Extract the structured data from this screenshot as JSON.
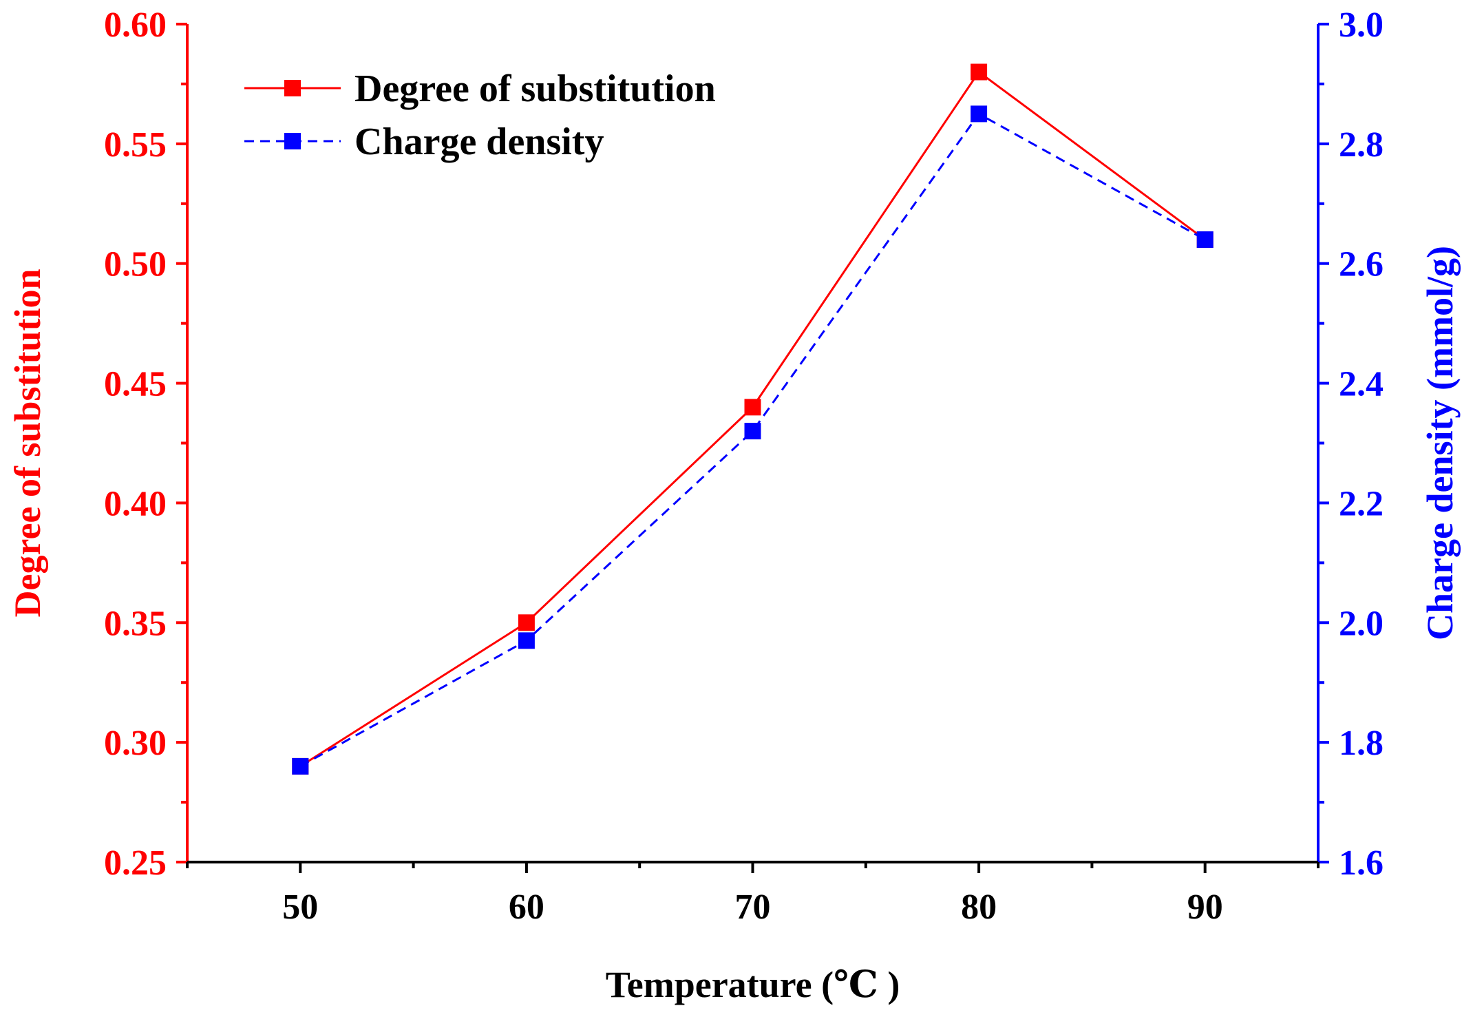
{
  "chart_data": {
    "type": "line",
    "title": "",
    "xlabel": "Temperature (℃ )",
    "ylabel_left": "Degree of substitution",
    "ylabel_right": "Charge density (mmol/g)",
    "x": [
      50,
      60,
      70,
      80,
      90
    ],
    "xlim": [
      45,
      95
    ],
    "xticks": [
      50,
      60,
      70,
      80,
      90
    ],
    "xtick_labels": [
      "50",
      "60",
      "70",
      "80",
      "90"
    ],
    "ylim_left": [
      0.25,
      0.6
    ],
    "yticks_left": [
      "0.25",
      "0.30",
      "0.35",
      "0.40",
      "0.45",
      "0.50",
      "0.55",
      "0.60"
    ],
    "ylim_right": [
      1.6,
      3.0
    ],
    "yticks_right": [
      "1.6",
      "1.8",
      "2.0",
      "2.2",
      "2.4",
      "2.6",
      "2.8",
      "3.0"
    ],
    "grid": false,
    "legend_position": "top-left",
    "series": [
      {
        "name": "Degree of substitution",
        "axis": "left",
        "values": [
          0.29,
          0.35,
          0.44,
          0.58,
          0.51
        ],
        "color": "#FF0000",
        "line_style": "solid",
        "marker": "square"
      },
      {
        "name": "Charge density",
        "axis": "right",
        "values": [
          1.76,
          1.97,
          2.32,
          2.85,
          2.64
        ],
        "color": "#0000FF",
        "line_style": "dashed",
        "marker": "square"
      }
    ],
    "colors": {
      "left_axis": "#FF0000",
      "right_axis": "#0000FF",
      "bottom_axis": "#000000"
    }
  }
}
